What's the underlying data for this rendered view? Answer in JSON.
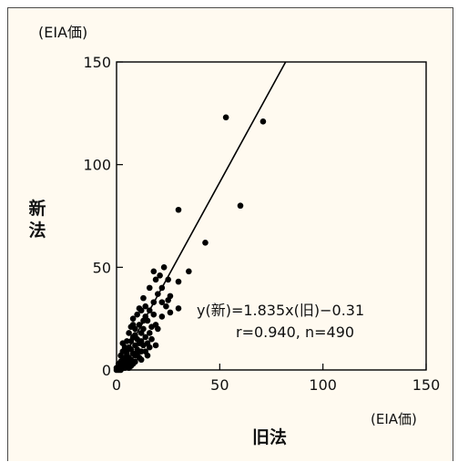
{
  "colors": {
    "panel_background": "#fffaf0",
    "panel_border": "#4a4a4a",
    "axis": "#000000",
    "points": "#000000",
    "regression_line": "#000000"
  },
  "chart_data": {
    "type": "scatter",
    "y_unit_label": "(EIA価)",
    "x_unit_label": "(EIA価)",
    "ylabel": "新法",
    "xlabel": "旧法",
    "xlim": [
      0,
      150
    ],
    "ylim": [
      0,
      150
    ],
    "x_ticks": [
      0,
      50,
      100,
      150
    ],
    "y_ticks": [
      0,
      50,
      100,
      150
    ],
    "grid": false,
    "annotations": {
      "equation": "y(新)=1.835x(旧)−0.31",
      "stats": "r=0.940, n=490"
    },
    "regression": {
      "slope": 1.835,
      "intercept": -0.31
    },
    "points": [
      [
        53,
        123
      ],
      [
        71,
        121
      ],
      [
        30,
        78
      ],
      [
        60,
        80
      ],
      [
        43,
        62
      ],
      [
        35,
        48
      ],
      [
        23,
        50
      ],
      [
        18,
        48
      ],
      [
        21,
        46
      ],
      [
        19,
        44
      ],
      [
        25,
        44
      ],
      [
        30,
        43
      ],
      [
        16,
        40
      ],
      [
        22,
        40
      ],
      [
        26,
        36
      ],
      [
        22,
        33
      ],
      [
        24,
        31
      ],
      [
        30,
        30
      ],
      [
        26,
        28
      ],
      [
        13,
        35
      ],
      [
        14,
        31
      ],
      [
        12,
        29
      ],
      [
        16,
        29
      ],
      [
        18,
        27
      ],
      [
        10,
        27
      ],
      [
        8,
        25
      ],
      [
        15,
        24
      ],
      [
        19,
        22
      ],
      [
        11,
        22
      ],
      [
        13,
        20
      ],
      [
        9,
        20
      ],
      [
        7,
        21
      ],
      [
        6,
        18
      ],
      [
        12,
        18
      ],
      [
        14,
        16
      ],
      [
        17,
        15
      ],
      [
        10,
        15
      ],
      [
        8,
        16
      ],
      [
        5,
        14
      ],
      [
        11,
        13
      ],
      [
        9,
        12
      ],
      [
        13,
        12
      ],
      [
        6,
        11
      ],
      [
        4,
        11
      ],
      [
        7,
        10
      ],
      [
        10,
        10
      ],
      [
        15,
        13
      ],
      [
        3,
        9
      ],
      [
        5,
        8
      ],
      [
        8,
        8
      ],
      [
        12,
        9
      ],
      [
        2,
        7
      ],
      [
        6,
        6
      ],
      [
        9,
        7
      ],
      [
        4,
        6
      ],
      [
        3,
        5
      ],
      [
        7,
        5
      ],
      [
        5,
        4
      ],
      [
        2,
        4
      ],
      [
        9,
        4
      ],
      [
        11,
        6
      ],
      [
        1,
        3
      ],
      [
        4,
        3
      ],
      [
        6,
        3
      ],
      [
        8,
        3
      ],
      [
        1,
        2
      ],
      [
        3,
        2
      ],
      [
        5,
        2
      ],
      [
        2,
        1
      ],
      [
        4,
        1
      ],
      [
        7,
        2
      ],
      [
        1,
        1
      ],
      [
        0,
        0
      ],
      [
        2,
        0
      ],
      [
        3,
        1
      ],
      [
        6,
        1
      ],
      [
        0,
        1
      ],
      [
        1,
        0
      ],
      [
        10,
        8
      ],
      [
        16,
        18
      ],
      [
        20,
        20
      ],
      [
        14,
        26
      ],
      [
        11,
        30
      ],
      [
        18,
        33
      ],
      [
        20,
        37
      ],
      [
        8,
        22
      ],
      [
        17,
        21
      ],
      [
        13,
        24
      ],
      [
        22,
        26
      ],
      [
        25,
        34
      ],
      [
        7,
        14
      ],
      [
        12,
        14
      ],
      [
        16,
        11
      ],
      [
        5,
        10
      ],
      [
        9,
        17
      ],
      [
        3,
        13
      ],
      [
        14,
        9
      ],
      [
        19,
        12
      ],
      [
        12,
        5
      ],
      [
        15,
        7
      ]
    ]
  }
}
